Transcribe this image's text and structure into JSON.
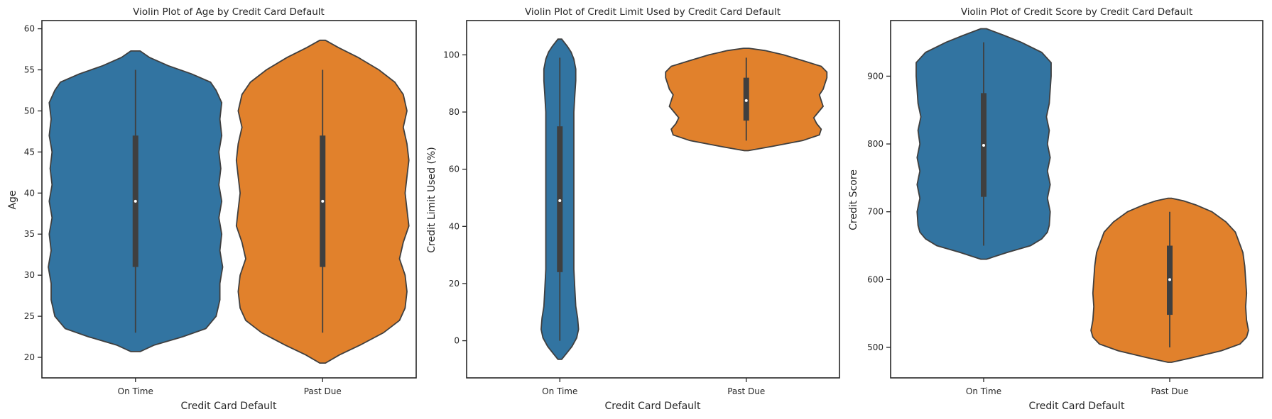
{
  "chart_data": [
    {
      "type": "violin",
      "title": "Violin Plot of Age by Credit Card Default",
      "xlabel": "Credit Card Default",
      "ylabel": "Age",
      "categories": [
        "On Time",
        "Past Due"
      ],
      "ylim": [
        17.5,
        61
      ],
      "yticks": [
        20,
        25,
        30,
        35,
        40,
        45,
        50,
        55,
        60
      ],
      "grid": false,
      "series": [
        {
          "category": "On Time",
          "color": "#3274a1",
          "min": 23,
          "q1": 31,
          "median": 39,
          "q3": 47,
          "max": 55,
          "kde_min": 20.7,
          "kde_max": 57.3,
          "density": [
            [
              20.7,
              0.05
            ],
            [
              21.5,
              0.2
            ],
            [
              22.5,
              0.5
            ],
            [
              23.5,
              0.75
            ],
            [
              25,
              0.86
            ],
            [
              27,
              0.9
            ],
            [
              29,
              0.9
            ],
            [
              31,
              0.93
            ],
            [
              33,
              0.9
            ],
            [
              35,
              0.92
            ],
            [
              37,
              0.89
            ],
            [
              39,
              0.92
            ],
            [
              41,
              0.89
            ],
            [
              43,
              0.91
            ],
            [
              45,
              0.89
            ],
            [
              47,
              0.92
            ],
            [
              49,
              0.9
            ],
            [
              51,
              0.92
            ],
            [
              52.5,
              0.86
            ],
            [
              53.5,
              0.8
            ],
            [
              54.5,
              0.6
            ],
            [
              55.5,
              0.35
            ],
            [
              56.5,
              0.15
            ],
            [
              57.3,
              0.05
            ]
          ]
        },
        {
          "category": "Past Due",
          "color": "#e1812c",
          "min": 23,
          "q1": 31,
          "median": 39,
          "q3": 47,
          "max": 55,
          "kde_min": 19.3,
          "kde_max": 58.6,
          "density": [
            [
              19.3,
              0.03
            ],
            [
              20.3,
              0.18
            ],
            [
              21.5,
              0.4
            ],
            [
              23,
              0.65
            ],
            [
              24.5,
              0.82
            ],
            [
              26,
              0.88
            ],
            [
              28,
              0.9
            ],
            [
              30,
              0.88
            ],
            [
              32,
              0.82
            ],
            [
              34,
              0.86
            ],
            [
              36,
              0.92
            ],
            [
              38,
              0.9
            ],
            [
              40,
              0.88
            ],
            [
              42,
              0.9
            ],
            [
              44,
              0.92
            ],
            [
              46,
              0.9
            ],
            [
              48,
              0.86
            ],
            [
              50,
              0.9
            ],
            [
              52,
              0.86
            ],
            [
              53.5,
              0.77
            ],
            [
              55,
              0.6
            ],
            [
              56.5,
              0.38
            ],
            [
              57.7,
              0.17
            ],
            [
              58.6,
              0.03
            ]
          ]
        }
      ]
    },
    {
      "type": "violin",
      "title": "Violin Plot of Credit Limit Used by Credit Card Default",
      "xlabel": "Credit Card Default",
      "ylabel": "Credit Limit Used (%)",
      "categories": [
        "On Time",
        "Past Due"
      ],
      "ylim": [
        -13,
        112
      ],
      "yticks": [
        0,
        20,
        40,
        60,
        80,
        100
      ],
      "grid": false,
      "series": [
        {
          "category": "On Time",
          "color": "#3274a1",
          "min": 0,
          "q1": 24,
          "median": 49,
          "q3": 75,
          "max": 99,
          "kde_min": -6.5,
          "kde_max": 105.5,
          "density": [
            [
              -6.5,
              0.02
            ],
            [
              -4.5,
              0.07
            ],
            [
              -2,
              0.13
            ],
            [
              1,
              0.18
            ],
            [
              4,
              0.2
            ],
            [
              8,
              0.19
            ],
            [
              12,
              0.17
            ],
            [
              18,
              0.16
            ],
            [
              25,
              0.15
            ],
            [
              32,
              0.15
            ],
            [
              40,
              0.15
            ],
            [
              48,
              0.15
            ],
            [
              56,
              0.15
            ],
            [
              64,
              0.15
            ],
            [
              72,
              0.15
            ],
            [
              80,
              0.15
            ],
            [
              86,
              0.16
            ],
            [
              91,
              0.17
            ],
            [
              95,
              0.17
            ],
            [
              98.5,
              0.15
            ],
            [
              101,
              0.12
            ],
            [
              103,
              0.08
            ],
            [
              105.5,
              0.02
            ]
          ]
        },
        {
          "category": "Past Due",
          "color": "#e1812c",
          "min": 70,
          "q1": 77,
          "median": 84,
          "q3": 92,
          "max": 99,
          "kde_min": 66.5,
          "kde_max": 102.3,
          "density": [
            [
              66.5,
              0.02
            ],
            [
              68,
              0.28
            ],
            [
              70,
              0.6
            ],
            [
              72,
              0.78
            ],
            [
              74,
              0.8
            ],
            [
              76,
              0.75
            ],
            [
              78,
              0.72
            ],
            [
              80,
              0.77
            ],
            [
              82,
              0.82
            ],
            [
              84,
              0.8
            ],
            [
              86,
              0.78
            ],
            [
              88,
              0.82
            ],
            [
              90,
              0.84
            ],
            [
              92,
              0.86
            ],
            [
              94,
              0.86
            ],
            [
              96,
              0.8
            ],
            [
              98,
              0.6
            ],
            [
              100,
              0.4
            ],
            [
              101.5,
              0.2
            ],
            [
              102.3,
              0.03
            ]
          ]
        }
      ]
    },
    {
      "type": "violin",
      "title": "Violin Plot of Credit Score by Credit Card Default",
      "xlabel": "Credit Card Default",
      "ylabel": "Credit Score",
      "categories": [
        "On Time",
        "Past Due"
      ],
      "ylim": [
        455,
        982
      ],
      "yticks": [
        500,
        600,
        700,
        800,
        900
      ],
      "grid": false,
      "series": [
        {
          "category": "On Time",
          "color": "#3274a1",
          "min": 650,
          "q1": 722,
          "median": 798,
          "q3": 875,
          "max": 950,
          "kde_min": 630,
          "kde_max": 970,
          "density": [
            [
              630,
              0.03
            ],
            [
              640,
              0.25
            ],
            [
              650,
              0.5
            ],
            [
              660,
              0.62
            ],
            [
              670,
              0.68
            ],
            [
              680,
              0.7
            ],
            [
              700,
              0.71
            ],
            [
              720,
              0.68
            ],
            [
              740,
              0.71
            ],
            [
              760,
              0.68
            ],
            [
              780,
              0.71
            ],
            [
              800,
              0.68
            ],
            [
              820,
              0.7
            ],
            [
              840,
              0.67
            ],
            [
              860,
              0.7
            ],
            [
              880,
              0.71
            ],
            [
              900,
              0.72
            ],
            [
              920,
              0.72
            ],
            [
              935,
              0.62
            ],
            [
              950,
              0.4
            ],
            [
              960,
              0.22
            ],
            [
              970,
              0.03
            ]
          ]
        },
        {
          "category": "Past Due",
          "color": "#e1812c",
          "min": 500,
          "q1": 548,
          "median": 600,
          "q3": 650,
          "max": 700,
          "kde_min": 478,
          "kde_max": 720,
          "density": [
            [
              478,
              0.02
            ],
            [
              485,
              0.25
            ],
            [
              495,
              0.55
            ],
            [
              505,
              0.75
            ],
            [
              515,
              0.82
            ],
            [
              525,
              0.84
            ],
            [
              540,
              0.82
            ],
            [
              560,
              0.81
            ],
            [
              580,
              0.82
            ],
            [
              600,
              0.81
            ],
            [
              620,
              0.8
            ],
            [
              640,
              0.78
            ],
            [
              655,
              0.74
            ],
            [
              670,
              0.7
            ],
            [
              685,
              0.6
            ],
            [
              700,
              0.45
            ],
            [
              710,
              0.28
            ],
            [
              716,
              0.15
            ],
            [
              720,
              0.02
            ]
          ]
        }
      ]
    }
  ]
}
